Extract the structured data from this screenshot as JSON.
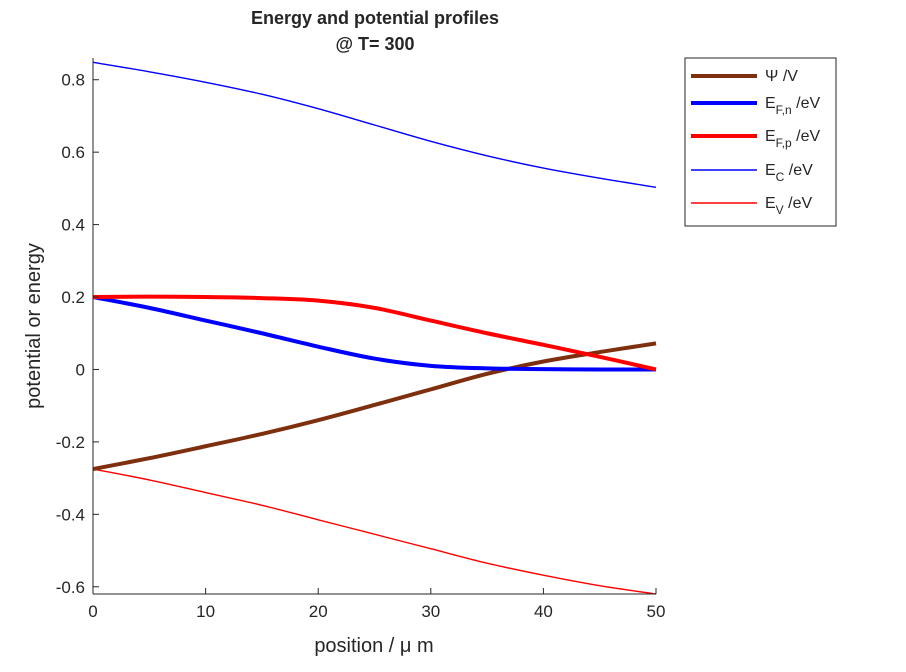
{
  "chart_data": {
    "type": "line",
    "title_line1": "Energy and potential profiles",
    "title_line2": "@ T= 300",
    "xlabel": "position / μ m",
    "ylabel": "potential or energy",
    "xlim": [
      0,
      50
    ],
    "ylim": [
      -0.62,
      0.86
    ],
    "x_ticks": [
      0,
      10,
      20,
      30,
      40,
      50
    ],
    "y_ticks": [
      -0.6,
      -0.4,
      -0.2,
      0,
      0.2,
      0.4,
      0.6,
      0.8
    ],
    "grid": false,
    "legend_position": "outside-top-right",
    "x": [
      0,
      5,
      10,
      15,
      20,
      25,
      30,
      35,
      40,
      45,
      50
    ],
    "series": [
      {
        "id": "psi",
        "legend_main": "Ψ /V",
        "legend_sub": "",
        "legend_suffix": "",
        "color": "#7E2F0E",
        "line": "thick",
        "values": [
          -0.275,
          -0.245,
          -0.212,
          -0.178,
          -0.14,
          -0.098,
          -0.055,
          -0.012,
          0.022,
          0.048,
          0.072
        ]
      },
      {
        "id": "efn",
        "legend_main": "E",
        "legend_sub": "F,n",
        "legend_suffix": " /eV",
        "color": "#0000FF",
        "line": "thick",
        "values": [
          0.2,
          0.17,
          0.135,
          0.1,
          0.063,
          0.03,
          0.01,
          0.003,
          0.001,
          0.0,
          0.0
        ]
      },
      {
        "id": "efp",
        "legend_main": "E",
        "legend_sub": "F,p",
        "legend_suffix": " /eV",
        "color": "#FF0000",
        "line": "thick",
        "values": [
          0.2,
          0.201,
          0.2,
          0.197,
          0.19,
          0.17,
          0.135,
          0.1,
          0.068,
          0.035,
          0.0
        ]
      },
      {
        "id": "ec",
        "legend_main": "E",
        "legend_sub": "C",
        "legend_suffix": " /eV",
        "color": "#0000FF",
        "line": "thin",
        "values": [
          0.848,
          0.822,
          0.793,
          0.76,
          0.72,
          0.675,
          0.63,
          0.59,
          0.556,
          0.528,
          0.503
        ]
      },
      {
        "id": "ev",
        "legend_main": "E",
        "legend_sub": "V",
        "legend_suffix": " /eV",
        "color": "#FF0000",
        "line": "thin",
        "values": [
          -0.275,
          -0.305,
          -0.34,
          -0.375,
          -0.415,
          -0.455,
          -0.495,
          -0.535,
          -0.568,
          -0.597,
          -0.62
        ]
      }
    ]
  }
}
